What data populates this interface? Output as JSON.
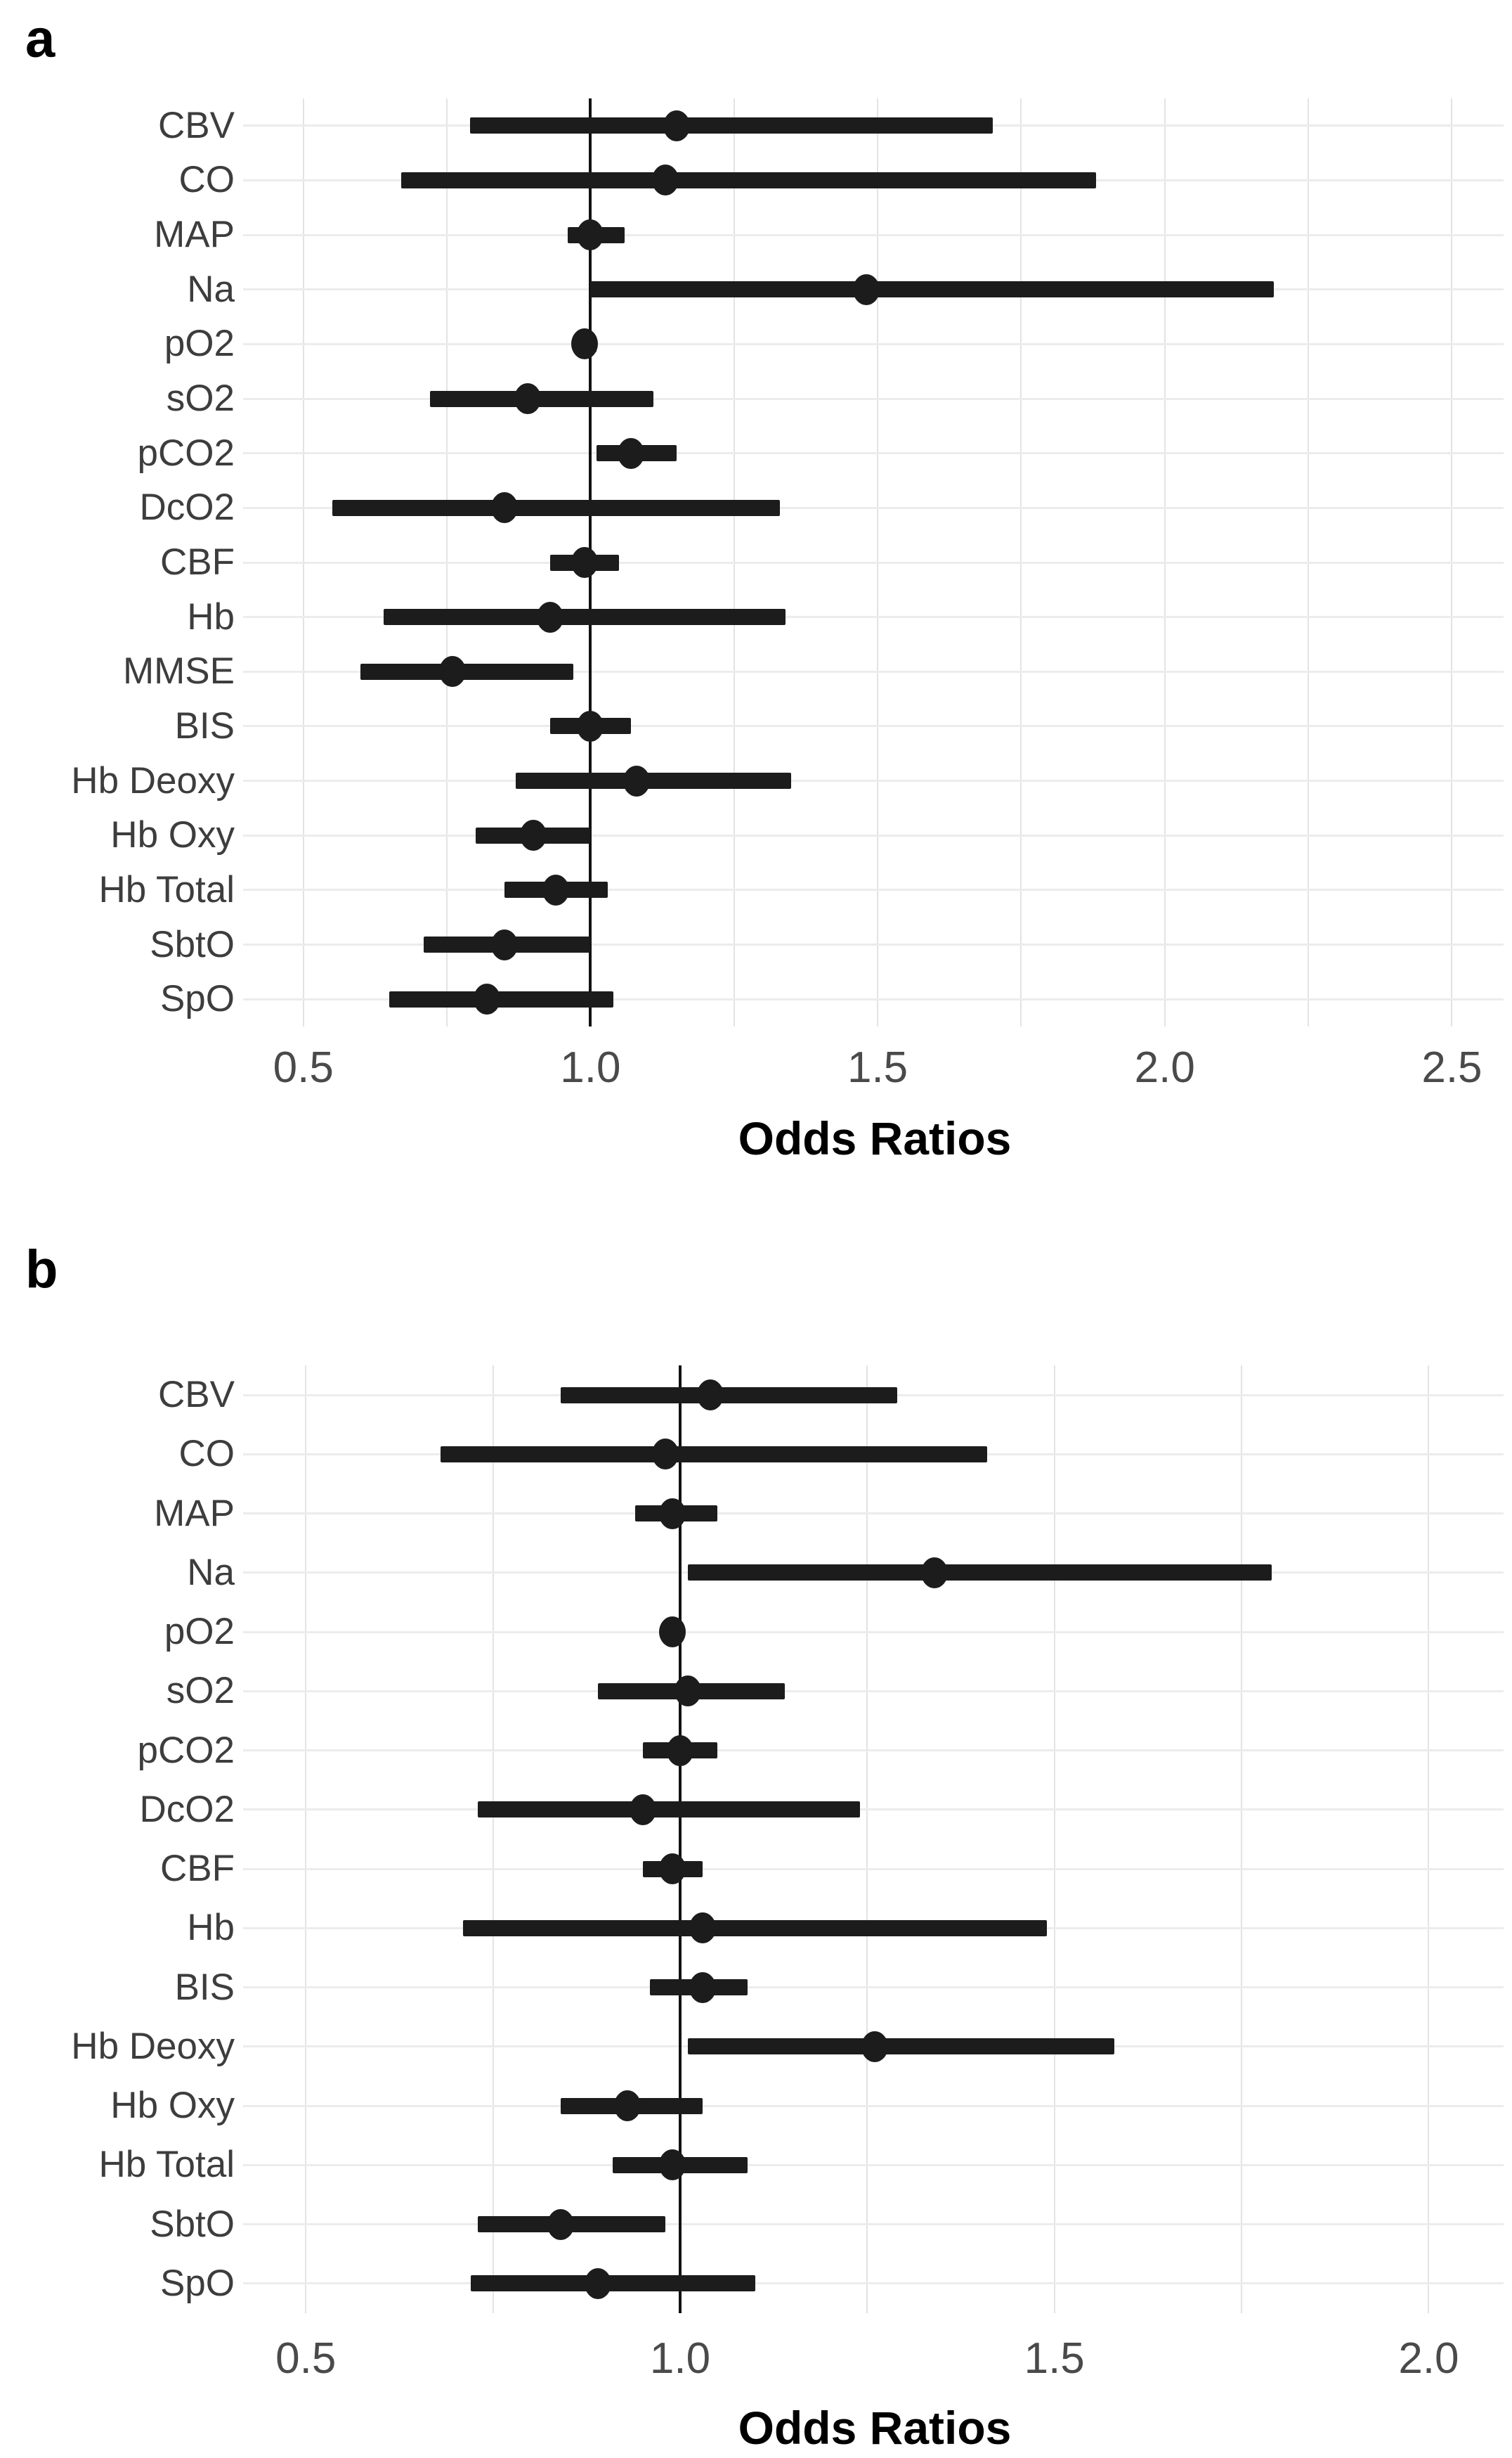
{
  "chart_data": [
    {
      "panel_label": "a",
      "type": "scatter",
      "subtype": "forest-plot",
      "title": "",
      "xlabel": "Odds Ratios",
      "ylabel": "",
      "x_ticks": [
        0.5,
        1.0,
        1.5,
        2.0,
        2.5
      ],
      "x_tick_labels": [
        "0.5",
        "1.0",
        "1.5",
        "2.0",
        "2.5"
      ],
      "xlim": [
        0.4,
        2.59
      ],
      "grid": true,
      "minor_grid_step": 0.25,
      "grid_range": [
        0.5,
        2.5
      ],
      "reference_line_x": 1.0,
      "legend": "none",
      "categories": [
        "CBV",
        "CO",
        "MAP",
        "Na",
        "pO2",
        "sO2",
        "pCO2",
        "DcO2",
        "CBF",
        "Hb",
        "MMSE",
        "BIS",
        "Hb Deoxy",
        "Hb Oxy",
        "Hb Total",
        "SbtO",
        "SpO"
      ],
      "series": [
        {
          "name": "odds-ratio-95ci",
          "points": [
            {
              "category": "CBV",
              "or": 1.15,
              "ci_low": 0.79,
              "ci_high": 1.7
            },
            {
              "category": "CO",
              "or": 1.13,
              "ci_low": 0.67,
              "ci_high": 1.88
            },
            {
              "category": "MAP",
              "or": 1.0,
              "ci_low": 0.96,
              "ci_high": 1.06
            },
            {
              "category": "Na",
              "or": 1.48,
              "ci_low": 1.0,
              "ci_high": 2.19
            },
            {
              "category": "pO2",
              "or": 0.99,
              "ci_low": 0.98,
              "ci_high": 1.01
            },
            {
              "category": "sO2",
              "or": 0.89,
              "ci_low": 0.72,
              "ci_high": 1.11
            },
            {
              "category": "pCO2",
              "or": 1.07,
              "ci_low": 1.01,
              "ci_high": 1.15
            },
            {
              "category": "DcO2",
              "or": 0.85,
              "ci_low": 0.55,
              "ci_high": 1.33
            },
            {
              "category": "CBF",
              "or": 0.99,
              "ci_low": 0.93,
              "ci_high": 1.05
            },
            {
              "category": "Hb",
              "or": 0.93,
              "ci_low": 0.64,
              "ci_high": 1.34
            },
            {
              "category": "MMSE",
              "or": 0.76,
              "ci_low": 0.6,
              "ci_high": 0.97
            },
            {
              "category": "BIS",
              "or": 1.0,
              "ci_low": 0.93,
              "ci_high": 1.07
            },
            {
              "category": "Hb Deoxy",
              "or": 1.08,
              "ci_low": 0.87,
              "ci_high": 1.35
            },
            {
              "category": "Hb Oxy",
              "or": 0.9,
              "ci_low": 0.8,
              "ci_high": 1.0
            },
            {
              "category": "Hb Total",
              "or": 0.94,
              "ci_low": 0.85,
              "ci_high": 1.03
            },
            {
              "category": "SbtO",
              "or": 0.85,
              "ci_low": 0.71,
              "ci_high": 1.0
            },
            {
              "category": "SpO",
              "or": 0.82,
              "ci_low": 0.65,
              "ci_high": 1.04
            }
          ]
        }
      ]
    },
    {
      "panel_label": "b",
      "type": "scatter",
      "subtype": "forest-plot",
      "title": "",
      "xlabel": "Odds Ratios",
      "ylabel": "",
      "x_ticks": [
        0.5,
        1.0,
        1.5,
        2.0
      ],
      "x_tick_labels": [
        "0.5",
        "1.0",
        "1.5",
        "2.0"
      ],
      "xlim": [
        0.42,
        2.1
      ],
      "grid": true,
      "minor_grid_step": 0.25,
      "grid_range": [
        0.5,
        2.0
      ],
      "reference_line_x": 1.0,
      "legend": "none",
      "categories": [
        "CBV",
        "CO",
        "MAP",
        "Na",
        "pO2",
        "sO2",
        "pCO2",
        "DcO2",
        "CBF",
        "Hb",
        "BIS",
        "Hb Deoxy",
        "Hb Oxy",
        "Hb Total",
        "SbtO",
        "SpO"
      ],
      "series": [
        {
          "name": "odds-ratio-95ci",
          "points": [
            {
              "category": "CBV",
              "or": 1.04,
              "ci_low": 0.84,
              "ci_high": 1.29
            },
            {
              "category": "CO",
              "or": 0.98,
              "ci_low": 0.68,
              "ci_high": 1.41
            },
            {
              "category": "MAP",
              "or": 0.99,
              "ci_low": 0.94,
              "ci_high": 1.05
            },
            {
              "category": "Na",
              "or": 1.34,
              "ci_low": 1.01,
              "ci_high": 1.79
            },
            {
              "category": "pO2",
              "or": 0.99,
              "ci_low": 0.98,
              "ci_high": 1.0
            },
            {
              "category": "sO2",
              "or": 1.01,
              "ci_low": 0.89,
              "ci_high": 1.14
            },
            {
              "category": "pCO2",
              "or": 1.0,
              "ci_low": 0.95,
              "ci_high": 1.05
            },
            {
              "category": "DcO2",
              "or": 0.95,
              "ci_low": 0.73,
              "ci_high": 1.24
            },
            {
              "category": "CBF",
              "or": 0.99,
              "ci_low": 0.95,
              "ci_high": 1.03
            },
            {
              "category": "Hb",
              "or": 1.03,
              "ci_low": 0.71,
              "ci_high": 1.49
            },
            {
              "category": "BIS",
              "or": 1.03,
              "ci_low": 0.96,
              "ci_high": 1.09
            },
            {
              "category": "Hb Deoxy",
              "or": 1.26,
              "ci_low": 1.01,
              "ci_high": 1.58
            },
            {
              "category": "Hb Oxy",
              "or": 0.93,
              "ci_low": 0.84,
              "ci_high": 1.03
            },
            {
              "category": "Hb Total",
              "or": 0.99,
              "ci_low": 0.91,
              "ci_high": 1.09
            },
            {
              "category": "SbtO",
              "or": 0.84,
              "ci_low": 0.73,
              "ci_high": 0.98
            },
            {
              "category": "SpO",
              "or": 0.89,
              "ci_low": 0.72,
              "ci_high": 1.1
            }
          ]
        }
      ]
    }
  ],
  "colors": {
    "marker": "#1c1c1c",
    "ci_bar": "#1c1c1c",
    "reference_line": "#121212",
    "vertical_gridline": "#e3e3e3",
    "row_gridline": "#ececec",
    "row_label_text": "#3d3d3d",
    "tick_label_text": "#4a4a4a",
    "axis_title_text": "#000000",
    "background": "#ffffff"
  }
}
